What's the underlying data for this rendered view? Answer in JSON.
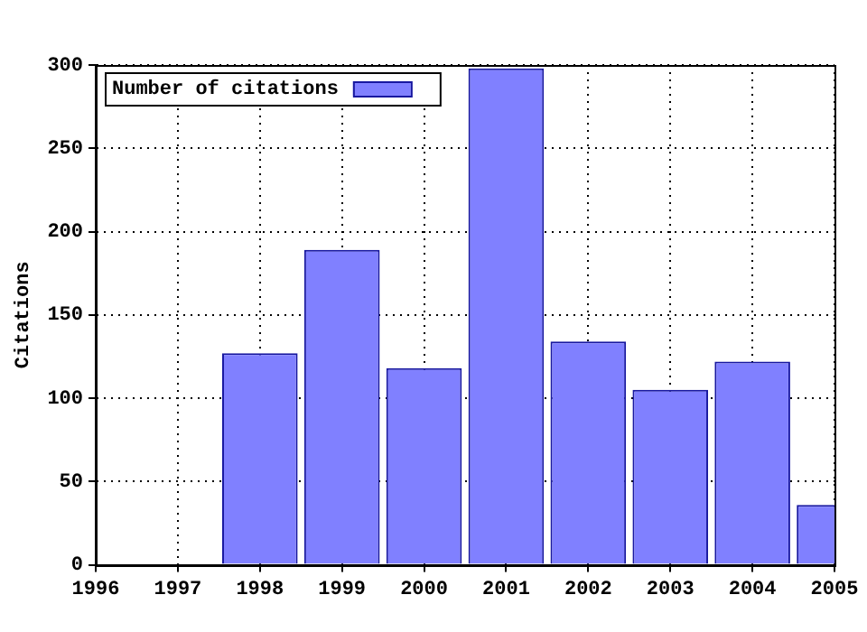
{
  "chart_data": {
    "type": "bar",
    "ylabel": "Citations",
    "x": [
      1998,
      1999,
      2000,
      2001,
      2002,
      2003,
      2004,
      2005
    ],
    "series": [
      {
        "name": "Number of citations",
        "color": "#8080ff",
        "values": [
          127,
          189,
          118,
          298,
          134,
          105,
          122,
          36
        ]
      }
    ],
    "xlim": [
      1996,
      2005
    ],
    "xticks": [
      1996,
      1997,
      1998,
      1999,
      2000,
      2001,
      2002,
      2003,
      2004,
      2005
    ],
    "ylim": [
      0,
      300
    ],
    "yticks": [
      0,
      50,
      100,
      150,
      200,
      250,
      300
    ],
    "grid": true,
    "legend": "top left"
  }
}
